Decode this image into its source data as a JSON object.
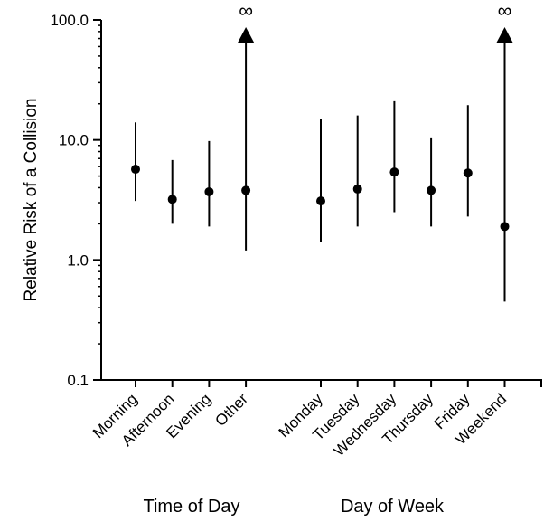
{
  "chart_data": {
    "type": "scatter",
    "ylabel": "Relative Risk of a Collision",
    "yscale": "log",
    "ylim": [
      0.1,
      100
    ],
    "yticks": [
      {
        "value": 0.1,
        "label": "0.1"
      },
      {
        "value": 1,
        "label": "1.0"
      },
      {
        "value": 10,
        "label": "10.0"
      },
      {
        "value": 100,
        "label": "100.0"
      }
    ],
    "infinity_symbol": "∞",
    "groups": [
      {
        "label": "Time of Day",
        "points": [
          {
            "category": "Morning",
            "estimate": 5.7,
            "lower": 3.1,
            "upper": 14.0,
            "upper_infinite": false
          },
          {
            "category": "Afternoon",
            "estimate": 3.2,
            "lower": 2.0,
            "upper": 6.8,
            "upper_infinite": false
          },
          {
            "category": "Evening",
            "estimate": 3.7,
            "lower": 1.9,
            "upper": 9.8,
            "upper_infinite": false
          },
          {
            "category": "Other",
            "estimate": 3.8,
            "lower": 1.2,
            "upper": null,
            "upper_infinite": true
          }
        ]
      },
      {
        "label": "Day of Week",
        "points": [
          {
            "category": "Monday",
            "estimate": 3.1,
            "lower": 1.4,
            "upper": 15.0,
            "upper_infinite": false
          },
          {
            "category": "Tuesday",
            "estimate": 3.9,
            "lower": 1.9,
            "upper": 16.0,
            "upper_infinite": false
          },
          {
            "category": "Wednesday",
            "estimate": 5.4,
            "lower": 2.5,
            "upper": 21.0,
            "upper_infinite": false
          },
          {
            "category": "Thursday",
            "estimate": 3.8,
            "lower": 1.9,
            "upper": 10.5,
            "upper_infinite": false
          },
          {
            "category": "Friday",
            "estimate": 5.3,
            "lower": 2.3,
            "upper": 19.5,
            "upper_infinite": false
          },
          {
            "category": "Weekend",
            "estimate": 1.9,
            "lower": 0.45,
            "upper": null,
            "upper_infinite": true
          }
        ]
      }
    ]
  }
}
